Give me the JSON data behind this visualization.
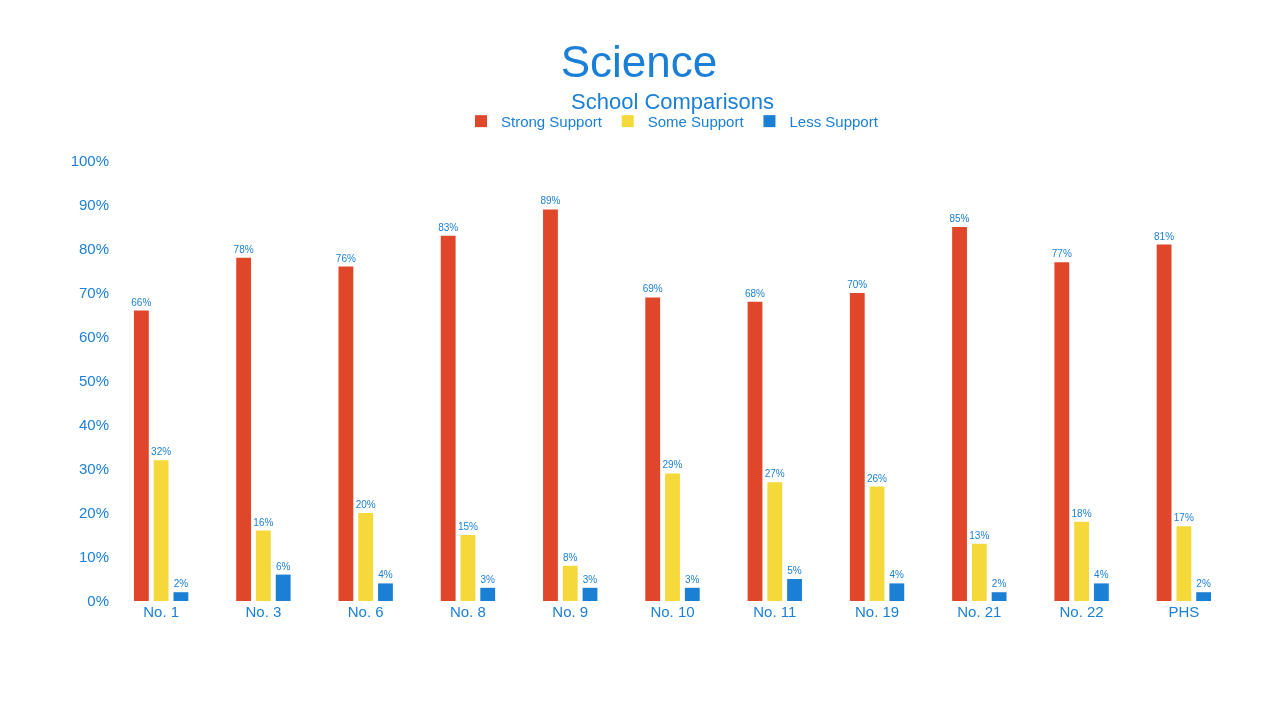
{
  "chart_data": {
    "type": "bar",
    "title": "Science",
    "subtitle": "School Comparisons",
    "categories": [
      "No. 1",
      "No. 3",
      "No. 6",
      "No. 8",
      "No. 9",
      "No. 10",
      "No. 11",
      "No. 19",
      "No. 21",
      "No. 22",
      "PHS"
    ],
    "series": [
      {
        "name": "Strong Support",
        "color": "#e0472a",
        "values": [
          66,
          78,
          76,
          83,
          89,
          69,
          68,
          70,
          85,
          77,
          81
        ],
        "value_labels": [
          "66%",
          "78%",
          "76%",
          "83%",
          "89%",
          "69%",
          "68%",
          "70%",
          "85%",
          "77%",
          "81%"
        ]
      },
      {
        "name": "Some Support",
        "color": "#f5d93a",
        "values": [
          32,
          16,
          20,
          15,
          8,
          29,
          27,
          26,
          13,
          18,
          17
        ],
        "value_labels": [
          "32%",
          "16%",
          "20%",
          "15%",
          "8%",
          "29%",
          "27%",
          "26%",
          "13%",
          "18%",
          "17%"
        ]
      },
      {
        "name": "Less Support",
        "color": "#1b7fd4",
        "values": [
          2,
          6,
          4,
          3,
          3,
          3,
          5,
          4,
          2,
          4,
          2
        ],
        "value_labels": [
          "2%",
          "6%",
          "4%",
          "3%",
          "3%",
          "3%",
          "5%",
          "4%",
          "2%",
          "4%",
          "2%"
        ]
      }
    ],
    "ylim": [
      0,
      100
    ],
    "yticks": [
      {
        "value": 0,
        "label": "0%"
      },
      {
        "value": 10,
        "label": "10%"
      },
      {
        "value": 20,
        "label": "20%"
      },
      {
        "value": 30,
        "label": "30%"
      },
      {
        "value": 40,
        "label": "40%"
      },
      {
        "value": 50,
        "label": "50%"
      },
      {
        "value": 60,
        "label": "60%"
      },
      {
        "value": 70,
        "label": "70%"
      },
      {
        "value": 80,
        "label": "80%"
      },
      {
        "value": 90,
        "label": "90%"
      },
      {
        "value": 100,
        "label": "100%"
      }
    ],
    "grid": false,
    "legend": "top"
  }
}
